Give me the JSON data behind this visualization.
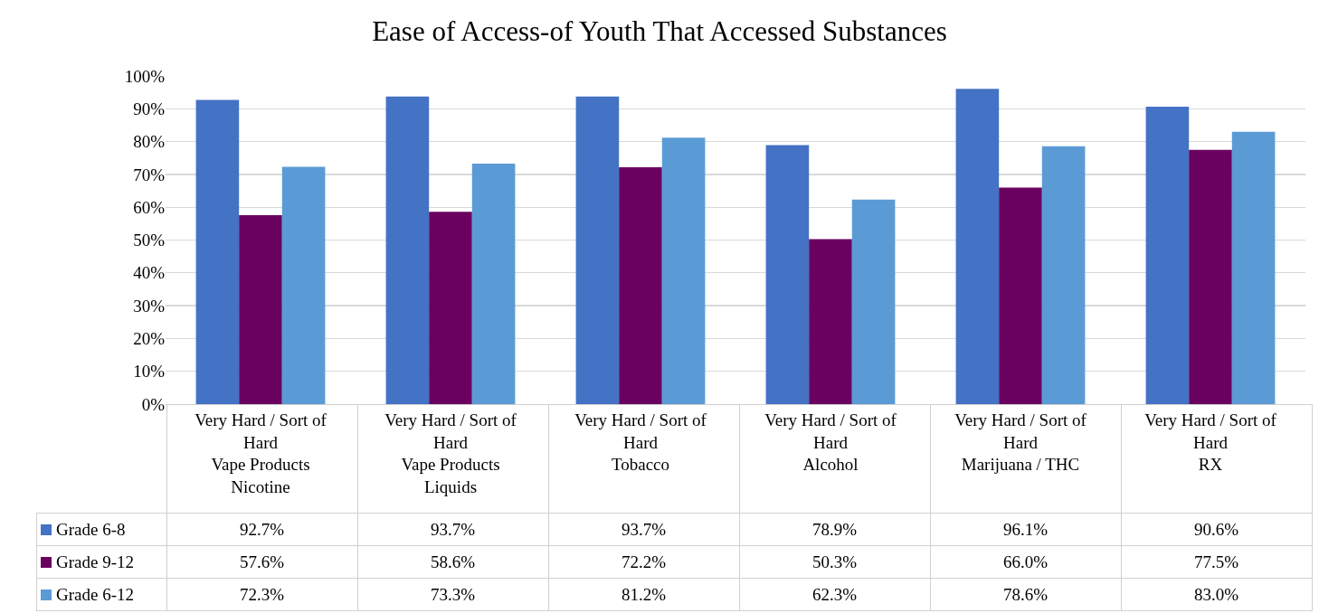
{
  "chart_data": {
    "type": "bar",
    "title": "Ease of Access-of Youth That Accessed Substances",
    "categories": [
      "Very Hard / Sort of Hard\nVape Products Nicotine",
      "Very Hard / Sort of Hard\nVape Products Liquids",
      "Very Hard / Sort of Hard\nTobacco",
      "Very Hard / Sort of Hard\nAlcohol",
      "Very Hard / Sort of Hard\nMarijuana / THC",
      "Very Hard / Sort of Hard\nRX"
    ],
    "series": [
      {
        "name": "Grade  6-8",
        "color": "#4472c4",
        "values": [
          92.7,
          93.7,
          93.7,
          78.9,
          96.1,
          90.6
        ],
        "value_labels": [
          "92.7%",
          "93.7%",
          "93.7%",
          "78.9%",
          "96.1%",
          "90.6%"
        ]
      },
      {
        "name": "Grade  9-12",
        "color": "#6a0060",
        "values": [
          57.6,
          58.6,
          72.2,
          50.3,
          66.0,
          77.5
        ],
        "value_labels": [
          "57.6%",
          "58.6%",
          "72.2%",
          "50.3%",
          "66.0%",
          "77.5%"
        ]
      },
      {
        "name": "Grade  6-12",
        "color": "#5b9bd5",
        "values": [
          72.3,
          73.3,
          81.2,
          62.3,
          78.6,
          83.0
        ],
        "value_labels": [
          "72.3%",
          "73.3%",
          "81.2%",
          "62.3%",
          "78.6%",
          "83.0%"
        ]
      }
    ],
    "ylim": [
      0,
      100
    ],
    "yticks": [
      {
        "value": 0,
        "label": "0%"
      },
      {
        "value": 10,
        "label": "10%"
      },
      {
        "value": 20,
        "label": "20%"
      },
      {
        "value": 30,
        "label": "30%"
      },
      {
        "value": 40,
        "label": "40%"
      },
      {
        "value": 50,
        "label": "50%"
      },
      {
        "value": 60,
        "label": "60%"
      },
      {
        "value": 70,
        "label": "70%"
      },
      {
        "value": 80,
        "label": "80%"
      },
      {
        "value": 90,
        "label": "90%"
      },
      {
        "value": 100,
        "label": "100%"
      }
    ],
    "grid": "y",
    "legend": "bottom left"
  }
}
